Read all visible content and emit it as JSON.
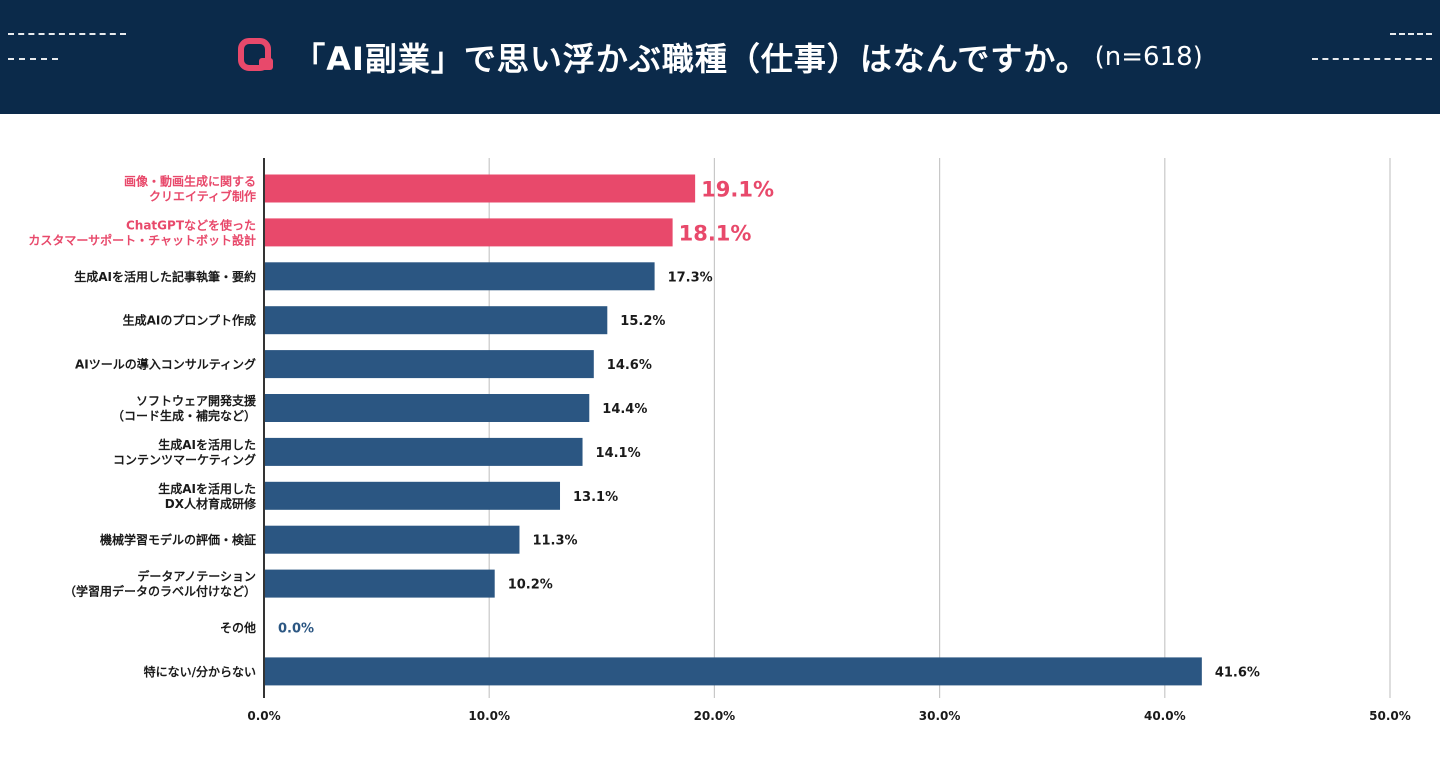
{
  "header": {
    "title": "「AI副業」で思い浮かぶ職種（仕事）はなんですか。",
    "sample_size": "(n=618)",
    "logo_icon": "q-logo-icon"
  },
  "colors": {
    "header_bg": "#0b2a4a",
    "bar_default": "#2b5682",
    "bar_highlight": "#e8496b",
    "label_default": "#1a1a1a",
    "grid": "#c8c8c8",
    "axis": "#000000"
  },
  "chart_data": {
    "type": "bar",
    "orientation": "horizontal",
    "categories": [
      [
        "画像・動画生成に関する",
        "クリエイティブ制作"
      ],
      [
        "ChatGPTなどを使った",
        "カスタマーサポート・チャットボット設計"
      ],
      [
        "生成AIを活用した記事執筆・要約"
      ],
      [
        "生成AIのプロンプト作成"
      ],
      [
        "AIツールの導入コンサルティング"
      ],
      [
        "ソフトウェア開発支援",
        "（コード生成・補完など）"
      ],
      [
        "生成AIを活用した",
        "コンテンツマーケティング"
      ],
      [
        "生成AIを活用した",
        "DX人材育成研修"
      ],
      [
        "機械学習モデルの評価・検証"
      ],
      [
        "データアノテーション",
        "（学習用データのラベル付けなど）"
      ],
      [
        "その他"
      ],
      [
        "特にない/分からない"
      ]
    ],
    "values": [
      19.1,
      18.1,
      17.3,
      15.2,
      14.6,
      14.4,
      14.1,
      13.1,
      11.3,
      10.2,
      0.0,
      41.6
    ],
    "value_labels": [
      "19.1%",
      "18.1%",
      "17.3%",
      "15.2%",
      "14.6%",
      "14.4%",
      "14.1%",
      "13.1%",
      "11.3%",
      "10.2%",
      "0.0%",
      "41.6%"
    ],
    "highlighted": [
      true,
      true,
      false,
      false,
      false,
      false,
      false,
      false,
      false,
      false,
      false,
      false
    ],
    "xlim": [
      0,
      50
    ],
    "xticks": [
      0,
      10,
      20,
      30,
      40,
      50
    ],
    "xtick_labels": [
      "0.0%",
      "10.0%",
      "20.0%",
      "30.0%",
      "40.0%",
      "50.0%"
    ],
    "grid": true,
    "title": "",
    "xlabel": "",
    "ylabel": ""
  }
}
